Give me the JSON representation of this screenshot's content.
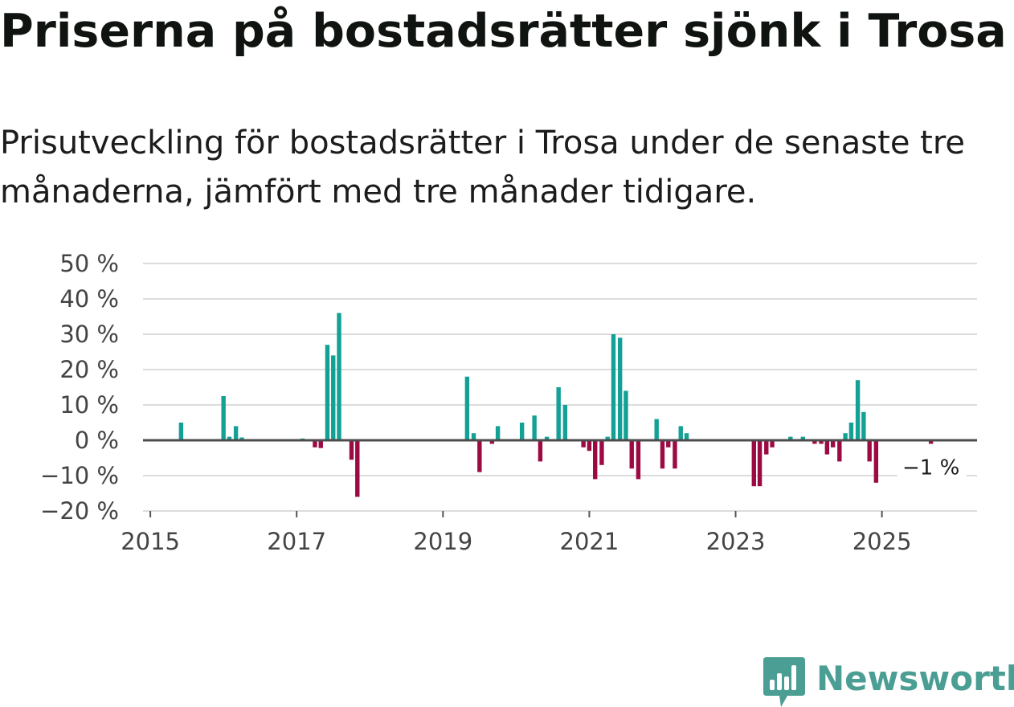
{
  "title": "Priserna på bostadsrätter sjönk i Trosa",
  "subtitle": "Prisutveckling för bostadsrätter i Trosa under de senaste tre månaderna, jämfört med tre månader tidigare.",
  "brand": {
    "name": "Newsworthy",
    "color": "#4a9e93"
  },
  "colors": {
    "positive": "#14a195",
    "negative": "#9c0a44",
    "grid": "#dcdcdc",
    "zero_line": "#4d4d4d"
  },
  "chart_data": {
    "type": "bar",
    "title": "Priserna på bostadsrätter sjönk i Trosa",
    "xlabel": "",
    "ylabel": "",
    "unit": "%",
    "ylim": [
      -20,
      50
    ],
    "xlim": [
      2014.9,
      2026.3
    ],
    "yticks": [
      -20,
      -10,
      0,
      10,
      20,
      30,
      40,
      50
    ],
    "ytick_labels": [
      "−20 %",
      "−10 %",
      "0 %",
      "10 %",
      "20 %",
      "30 %",
      "40 %",
      "50 %"
    ],
    "xticks": [
      2015,
      2017,
      2019,
      2021,
      2023,
      2025
    ],
    "xtick_labels": [
      "2015",
      "2017",
      "2019",
      "2021",
      "2023",
      "2025"
    ],
    "grid": true,
    "last_value_label": "−1 %",
    "series": [
      {
        "name": "Prisutveckling",
        "points": [
          {
            "x": 2015.42,
            "value": 5
          },
          {
            "x": 2016.0,
            "value": 12.5
          },
          {
            "x": 2016.08,
            "value": 1
          },
          {
            "x": 2016.17,
            "value": 4
          },
          {
            "x": 2016.25,
            "value": 0.8
          },
          {
            "x": 2017.08,
            "value": 0.5
          },
          {
            "x": 2017.25,
            "value": -2
          },
          {
            "x": 2017.33,
            "value": -2.2
          },
          {
            "x": 2017.42,
            "value": 27
          },
          {
            "x": 2017.5,
            "value": 24
          },
          {
            "x": 2017.58,
            "value": 36
          },
          {
            "x": 2017.75,
            "value": -5.5
          },
          {
            "x": 2017.83,
            "value": -16
          },
          {
            "x": 2019.33,
            "value": 18
          },
          {
            "x": 2019.42,
            "value": 2
          },
          {
            "x": 2019.5,
            "value": -9
          },
          {
            "x": 2019.67,
            "value": -1
          },
          {
            "x": 2019.75,
            "value": 4
          },
          {
            "x": 2020.08,
            "value": 5
          },
          {
            "x": 2020.25,
            "value": 7
          },
          {
            "x": 2020.33,
            "value": -6
          },
          {
            "x": 2020.42,
            "value": 1
          },
          {
            "x": 2020.58,
            "value": 15
          },
          {
            "x": 2020.67,
            "value": 10
          },
          {
            "x": 2020.92,
            "value": -2
          },
          {
            "x": 2021.0,
            "value": -3
          },
          {
            "x": 2021.08,
            "value": -11
          },
          {
            "x": 2021.17,
            "value": -7
          },
          {
            "x": 2021.25,
            "value": 1
          },
          {
            "x": 2021.33,
            "value": 30
          },
          {
            "x": 2021.42,
            "value": 29
          },
          {
            "x": 2021.5,
            "value": 14
          },
          {
            "x": 2021.58,
            "value": -8
          },
          {
            "x": 2021.67,
            "value": -11
          },
          {
            "x": 2021.92,
            "value": 6
          },
          {
            "x": 2022.0,
            "value": -8
          },
          {
            "x": 2022.08,
            "value": -2
          },
          {
            "x": 2022.17,
            "value": -8
          },
          {
            "x": 2022.25,
            "value": 4
          },
          {
            "x": 2022.33,
            "value": 2
          },
          {
            "x": 2023.25,
            "value": -13
          },
          {
            "x": 2023.33,
            "value": -13
          },
          {
            "x": 2023.42,
            "value": -4
          },
          {
            "x": 2023.5,
            "value": -2
          },
          {
            "x": 2023.75,
            "value": 1
          },
          {
            "x": 2023.92,
            "value": 1
          },
          {
            "x": 2024.08,
            "value": -1
          },
          {
            "x": 2024.17,
            "value": -1
          },
          {
            "x": 2024.25,
            "value": -4
          },
          {
            "x": 2024.33,
            "value": -2
          },
          {
            "x": 2024.42,
            "value": -6
          },
          {
            "x": 2024.5,
            "value": 2
          },
          {
            "x": 2024.58,
            "value": 5
          },
          {
            "x": 2024.67,
            "value": 17
          },
          {
            "x": 2024.75,
            "value": 8
          },
          {
            "x": 2024.83,
            "value": -6
          },
          {
            "x": 2024.92,
            "value": -12
          },
          {
            "x": 2025.67,
            "value": -1
          }
        ]
      }
    ]
  }
}
